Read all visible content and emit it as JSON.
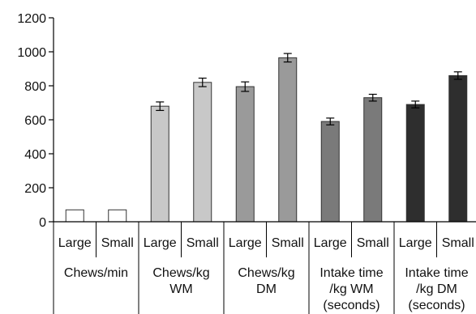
{
  "chart_data": {
    "type": "bar",
    "groups": [
      {
        "label": [
          "Chews/min"
        ],
        "color": "#ffffff"
      },
      {
        "label": [
          "Chews/kg",
          "WM"
        ],
        "color": "#c8c8c8"
      },
      {
        "label": [
          "Chews/kg",
          "DM"
        ],
        "color": "#9a9a9a"
      },
      {
        "label": [
          "Intake time",
          "/kg WM",
          "(seconds)"
        ],
        "color": "#7a7a7a"
      },
      {
        "label": [
          "Intake time",
          "/kg DM",
          "(seconds)"
        ],
        "color": "#2e2e2e"
      }
    ],
    "subcategories": [
      "Large",
      "Small"
    ],
    "values": [
      [
        70,
        70
      ],
      [
        680,
        820
      ],
      [
        795,
        965
      ],
      [
        590,
        730
      ],
      [
        690,
        860
      ]
    ],
    "errors": [
      [
        null,
        null
      ],
      [
        25,
        25
      ],
      [
        28,
        25
      ],
      [
        20,
        20
      ],
      [
        20,
        22
      ]
    ],
    "ylim": [
      0,
      1200
    ],
    "yticks": [
      0,
      200,
      400,
      600,
      800,
      1000,
      1200
    ],
    "title": "",
    "xlabel": "",
    "ylabel": ""
  }
}
